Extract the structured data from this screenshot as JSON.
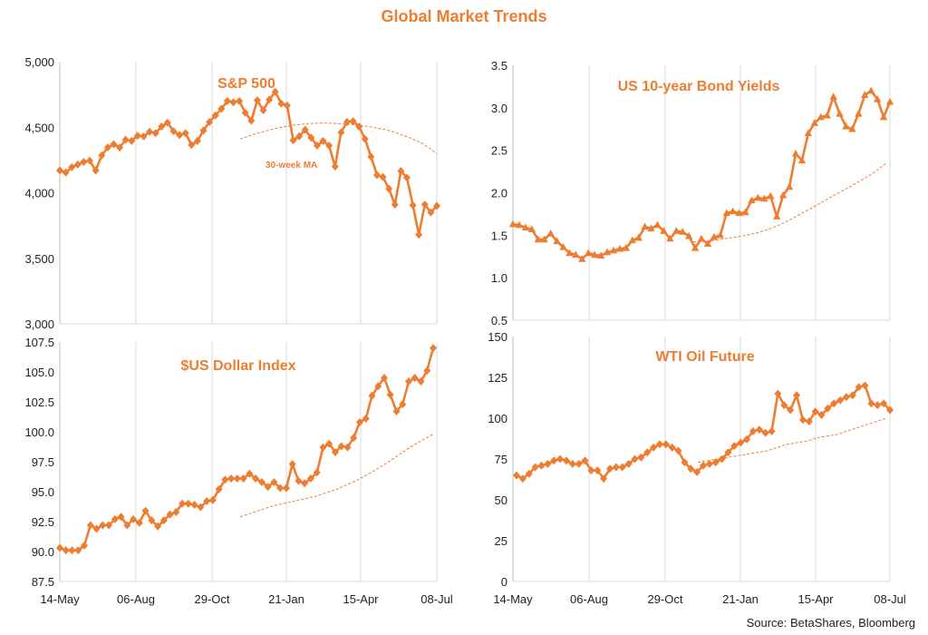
{
  "title": "Global Market Trends",
  "source": "Source: BetaShares, Bloomberg",
  "chart_data": [
    {
      "type": "line",
      "title": "S&P 500",
      "annotation": "30-week MA",
      "x_tick_labels": [
        "14-May",
        "06-Aug",
        "29-Oct",
        "21-Jan",
        "15-Apr",
        "08-Jul"
      ],
      "y_tick_labels": [
        "3,000",
        "3,500",
        "4,000",
        "4,500",
        "5,000"
      ],
      "ylim": [
        3000,
        5000
      ],
      "grid": "vertical",
      "marker": "diamond",
      "series": [
        {
          "values": [
            4170,
            4155,
            4195,
            4215,
            4235,
            4245,
            4170,
            4285,
            4345,
            4370,
            4345,
            4405,
            4395,
            4435,
            4430,
            4465,
            4455,
            4505,
            4535,
            4470,
            4440,
            4455,
            4365,
            4395,
            4475,
            4540,
            4590,
            4640,
            4700,
            4690,
            4700,
            4610,
            4550,
            4705,
            4630,
            4710,
            4770,
            4680,
            4665,
            4400,
            4430,
            4480,
            4420,
            4360,
            4395,
            4360,
            4200,
            4460,
            4540,
            4545,
            4505,
            4410,
            4275,
            4135,
            4120,
            4030,
            3910,
            4165,
            4115,
            3905,
            3680,
            3910,
            3850,
            3900
          ]
        },
        {
          "values": [
            4410,
            4430,
            4450,
            4465,
            4480,
            4495,
            4505,
            4515,
            4522,
            4527,
            4530,
            4532,
            4530,
            4527,
            4523,
            4518,
            4512,
            4505,
            4495,
            4485,
            4470,
            4450,
            4430,
            4405,
            4380,
            4340,
            4300
          ]
        }
      ]
    },
    {
      "type": "line",
      "title": "US 10-year Bond Yields",
      "x_tick_labels": [],
      "y_tick_labels": [
        "0.5",
        "1.0",
        "1.5",
        "2.0",
        "2.5",
        "3.0",
        "3.5"
      ],
      "ylim": [
        0.5,
        3.5
      ],
      "grid": "vertical",
      "marker": "triangle",
      "series": [
        {
          "values": [
            1.63,
            1.62,
            1.59,
            1.57,
            1.45,
            1.45,
            1.52,
            1.43,
            1.36,
            1.29,
            1.27,
            1.22,
            1.29,
            1.27,
            1.26,
            1.3,
            1.32,
            1.34,
            1.35,
            1.44,
            1.47,
            1.6,
            1.58,
            1.62,
            1.55,
            1.46,
            1.55,
            1.54,
            1.49,
            1.35,
            1.46,
            1.4,
            1.48,
            1.5,
            1.76,
            1.78,
            1.76,
            1.77,
            1.91,
            1.94,
            1.93,
            1.96,
            1.72,
            1.97,
            2.07,
            2.46,
            2.38,
            2.7,
            2.82,
            2.89,
            2.91,
            3.13,
            2.93,
            2.78,
            2.75,
            2.93,
            3.15,
            3.2,
            3.1,
            2.89,
            3.07
          ]
        },
        {
          "values": [
            1.42,
            1.43,
            1.44,
            1.46,
            1.48,
            1.5,
            1.53,
            1.57,
            1.62,
            1.68,
            1.75,
            1.82,
            1.89,
            1.96,
            2.03,
            2.1,
            2.17,
            2.25,
            2.35
          ]
        }
      ]
    },
    {
      "type": "line",
      "title": "$US Dollar Index",
      "x_tick_labels": [
        "14-May",
        "06-Aug",
        "29-Oct",
        "21-Jan",
        "15-Apr",
        "08-Jul"
      ],
      "y_tick_labels": [
        "87.5",
        "90.0",
        "92.5",
        "95.0",
        "97.5",
        "100.0",
        "102.5",
        "105.0",
        "107.5"
      ],
      "ylim": [
        87.5,
        107.5
      ],
      "grid": "vertical",
      "marker": "diamond",
      "series": [
        {
          "values": [
            90.3,
            90.1,
            90.1,
            90.1,
            90.5,
            92.2,
            91.9,
            92.2,
            92.2,
            92.7,
            92.9,
            92.2,
            92.7,
            92.4,
            93.4,
            92.6,
            92.1,
            92.6,
            93.1,
            93.3,
            94.0,
            94.0,
            93.9,
            93.7,
            94.2,
            94.3,
            95.2,
            96.0,
            96.1,
            96.1,
            96.1,
            96.5,
            96.1,
            95.8,
            95.4,
            95.8,
            95.3,
            95.3,
            97.3,
            95.9,
            95.7,
            96.1,
            96.6,
            98.7,
            99.0,
            98.3,
            98.8,
            98.7,
            99.5,
            100.8,
            101.1,
            103.0,
            103.8,
            104.5,
            103.1,
            101.7,
            102.3,
            104.2,
            104.5,
            104.2,
            105.1,
            107.0
          ]
        },
        {
          "values": [
            92.9,
            93.2,
            93.5,
            93.8,
            94.0,
            94.2,
            94.4,
            94.6,
            94.9,
            95.2,
            95.6,
            96.0,
            96.5,
            97.0,
            97.6,
            98.2,
            98.8,
            99.3,
            99.8
          ]
        }
      ]
    },
    {
      "type": "line",
      "title": "WTI Oil Future",
      "x_tick_labels": [
        "14-May",
        "06-Aug",
        "29-Oct",
        "21-Jan",
        "15-Apr",
        "08-Jul"
      ],
      "y_tick_labels": [
        "0",
        "25",
        "50",
        "75",
        "100",
        "125",
        "150"
      ],
      "ylim": [
        0,
        150
      ],
      "grid": "vertical",
      "marker": "diamond",
      "series": [
        {
          "values": [
            65,
            63,
            66,
            70,
            71,
            72,
            74,
            75,
            74,
            72,
            72,
            74,
            68,
            68,
            63,
            69,
            70,
            70,
            72,
            75,
            76,
            79,
            82,
            84,
            84,
            82,
            80,
            73,
            69,
            67,
            71,
            72,
            73,
            75,
            79,
            83,
            85,
            87,
            92,
            93,
            91,
            92,
            115,
            108,
            105,
            114,
            99,
            98,
            104,
            102,
            106,
            109,
            111,
            113,
            114,
            119,
            120,
            109,
            108,
            109,
            105
          ]
        },
        {
          "values": [
            73,
            74,
            75,
            76,
            77,
            78,
            79,
            80,
            82,
            84,
            85,
            86,
            88,
            89,
            90,
            92,
            94,
            96,
            98,
            100
          ]
        }
      ]
    }
  ]
}
